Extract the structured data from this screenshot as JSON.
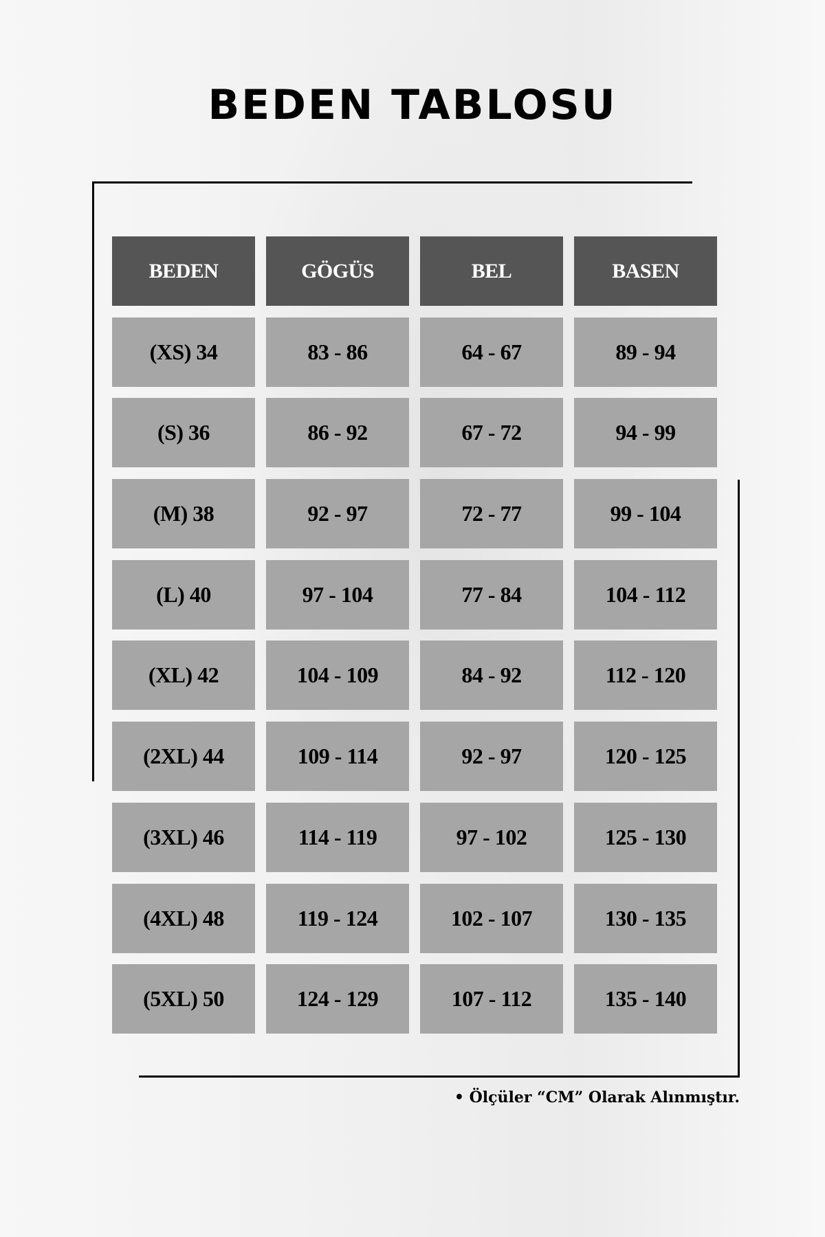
{
  "title": "BEDEN TABLOSU",
  "colors": {
    "header_bg": "#555555",
    "cell_bg": "#a6a6a6",
    "header_text": "#ffffff",
    "text": "#000000"
  },
  "table": {
    "headers": [
      "BEDEN",
      "GÖGÜS",
      "BEL",
      "BASEN"
    ],
    "rows": [
      [
        "(XS) 34",
        "83 - 86",
        "64 - 67",
        "89 - 94"
      ],
      [
        "(S) 36",
        "86 - 92",
        "67 - 72",
        "94 - 99"
      ],
      [
        "(M) 38",
        "92 - 97",
        "72 - 77",
        "99 - 104"
      ],
      [
        "(L) 40",
        "97 - 104",
        "77 - 84",
        "104 - 112"
      ],
      [
        "(XL) 42",
        "104 - 109",
        "84 - 92",
        "112 - 120"
      ],
      [
        "(2XL) 44",
        "109 - 114",
        "92 - 97",
        "120 - 125"
      ],
      [
        "(3XL) 46",
        "114 - 119",
        "97 - 102",
        "125 - 130"
      ],
      [
        "(4XL) 48",
        "119 - 124",
        "102 - 107",
        "130 - 135"
      ],
      [
        "(5XL) 50",
        "124 - 129",
        "107 - 112",
        "135 - 140"
      ]
    ]
  },
  "note": "• Ölçüler “CM” Olarak Alınmıştır."
}
